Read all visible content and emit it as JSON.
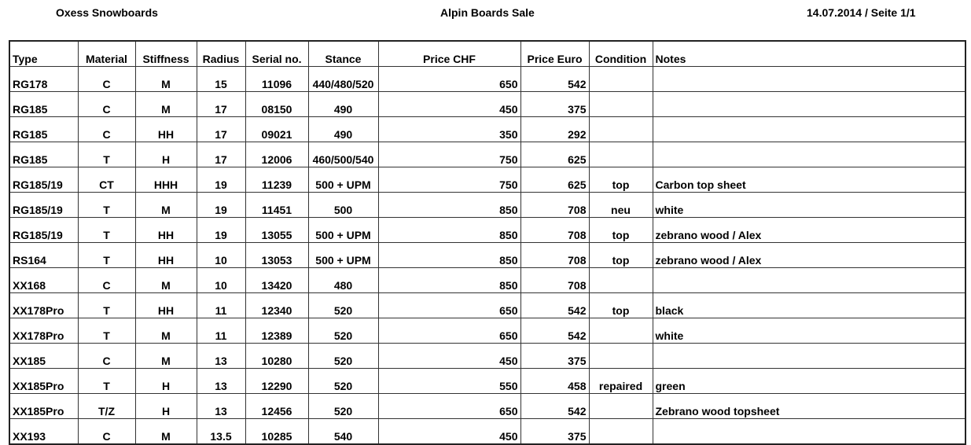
{
  "header": {
    "company": "Oxess Snowboards",
    "title": "Alpin Boards Sale",
    "date_page": "14.07.2014 / Seite 1/1"
  },
  "columns": [
    "Type",
    "Material",
    "Stiffness",
    "Radius",
    "Serial no.",
    "Stance",
    "Price CHF",
    "Price Euro",
    "Condition",
    "Notes"
  ],
  "rows": [
    [
      "RG178",
      "C",
      "M",
      "15",
      "11096",
      "440/480/520",
      "650",
      "542",
      "",
      ""
    ],
    [
      "RG185",
      "C",
      "M",
      "17",
      "08150",
      "490",
      "450",
      "375",
      "",
      ""
    ],
    [
      "RG185",
      "C",
      "HH",
      "17",
      "09021",
      "490",
      "350",
      "292",
      "",
      ""
    ],
    [
      "RG185",
      "T",
      "H",
      "17",
      "12006",
      "460/500/540",
      "750",
      "625",
      "",
      ""
    ],
    [
      "RG185/19",
      "CT",
      "HHH",
      "19",
      "11239",
      "500 + UPM",
      "750",
      "625",
      "top",
      "Carbon top sheet"
    ],
    [
      "RG185/19",
      "T",
      "M",
      "19",
      "11451",
      "500",
      "850",
      "708",
      "neu",
      "white"
    ],
    [
      "RG185/19",
      "T",
      "HH",
      "19",
      "13055",
      "500 + UPM",
      "850",
      "708",
      "top",
      "zebrano wood / Alex"
    ],
    [
      "RS164",
      "T",
      "HH",
      "10",
      "13053",
      "500 + UPM",
      "850",
      "708",
      "top",
      "zebrano wood / Alex"
    ],
    [
      "XX168",
      "C",
      "M",
      "10",
      "13420",
      "480",
      "850",
      "708",
      "",
      ""
    ],
    [
      "XX178Pro",
      "T",
      "HH",
      "11",
      "12340",
      "520",
      "650",
      "542",
      "top",
      "black"
    ],
    [
      "XX178Pro",
      "T",
      "M",
      "11",
      "12389",
      "520",
      "650",
      "542",
      "",
      "white"
    ],
    [
      "XX185",
      "C",
      "M",
      "13",
      "10280",
      "520",
      "450",
      "375",
      "",
      ""
    ],
    [
      "XX185Pro",
      "T",
      "H",
      "13",
      "12290",
      "520",
      "550",
      "458",
      "repaired",
      "green"
    ],
    [
      "XX185Pro",
      "T/Z",
      "H",
      "13",
      "12456",
      "520",
      "650",
      "542",
      "",
      "Zebrano wood topsheet"
    ],
    [
      "XX193",
      "C",
      "M",
      "13.5",
      "10285",
      "540",
      "450",
      "375",
      "",
      ""
    ]
  ]
}
